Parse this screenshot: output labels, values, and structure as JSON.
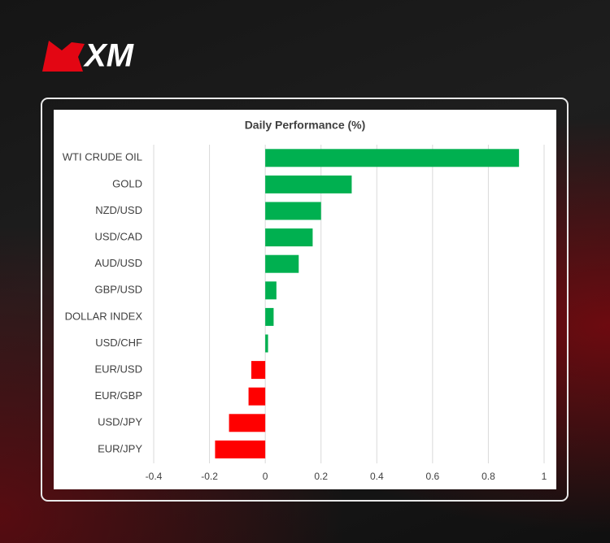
{
  "brand": "XM",
  "chart_data": {
    "type": "bar",
    "orientation": "horizontal",
    "title": "Daily Performance (%)",
    "categories": [
      "WTI CRUDE OIL",
      "GOLD",
      "NZD/USD",
      "USD/CAD",
      "AUD/USD",
      "GBP/USD",
      "DOLLAR INDEX",
      "USD/CHF",
      "EUR/USD",
      "EUR/GBP",
      "USD/JPY",
      "EUR/JPY"
    ],
    "values": [
      0.91,
      0.31,
      0.2,
      0.17,
      0.12,
      0.04,
      0.03,
      0.01,
      -0.05,
      -0.06,
      -0.13,
      -0.18
    ],
    "positive_color": "#00b050",
    "negative_color": "#ff0000",
    "xlim": [
      -0.4,
      1
    ],
    "xticks": [
      -0.4,
      -0.2,
      0,
      0.2,
      0.4,
      0.6,
      0.8,
      1
    ],
    "grid": true
  }
}
